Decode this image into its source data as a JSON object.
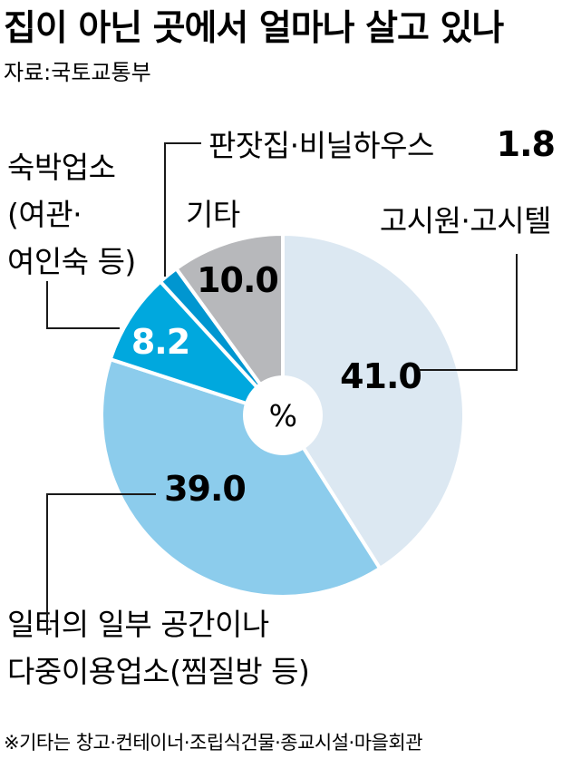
{
  "title": "집이 아닌 곳에서 얼마나 살고 있나",
  "source": "자료:국토교통부",
  "chart_data": {
    "type": "pie",
    "unit_label": "%",
    "slices": [
      {
        "name": "고시원·고시텔",
        "value": 41.0,
        "value_label": "41.0",
        "color": "#dce8f2"
      },
      {
        "name": "일터의 일부 공간이나 다중이용업소(찜질방 등)",
        "value": 39.0,
        "value_label": "39.0",
        "color": "#8cccec"
      },
      {
        "name": "숙박업소 (여관·여인숙 등)",
        "value": 8.2,
        "value_label": "8.2",
        "color": "#00a8de"
      },
      {
        "name": "판잣집·비닐하우스",
        "value": 1.8,
        "value_label": "1.8",
        "color": "#0096d0"
      },
      {
        "name": "기타",
        "value": 10.0,
        "value_label": "10.0",
        "color": "#b7b8bb"
      }
    ]
  },
  "labels": {
    "gosiwon": "고시원·고시텔",
    "workplace_line1": "일터의 일부 공간이나",
    "workplace_line2": "다중이용업소(찜질방 등)",
    "lodging_line1": "숙박업소",
    "lodging_line2": "(여관·",
    "lodging_line3": "여인숙 등)",
    "shack": "판잣집·비닐하우스",
    "shack_value": "1.8",
    "other": "기타"
  },
  "footnote": "※기타는 창고·컨테이너·조립식건물·종교시설·마을회관"
}
